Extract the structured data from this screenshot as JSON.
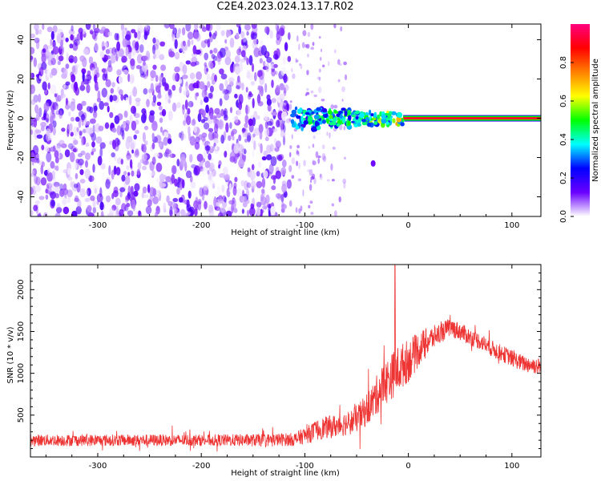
{
  "title": "C2E4.2023.024.13.17.R02",
  "chart_data": [
    {
      "type": "heatmap",
      "xlabel": "Height of straight line (km)",
      "ylabel": "Frequency (Hz)",
      "xlim": [
        -365,
        128
      ],
      "ylim": [
        -50,
        48
      ],
      "x_ticks": [
        -300,
        -200,
        -100,
        0,
        100
      ],
      "x_tick_labels": [
        "-300",
        "-200",
        "-100",
        "0",
        "100"
      ],
      "y_ticks": [
        -40,
        -20,
        0,
        20,
        40
      ],
      "y_tick_labels": [
        "-40",
        "-20",
        "0",
        "20",
        "40"
      ],
      "colorbar": {
        "label": "Normalized spectral amplitude",
        "range": [
          0,
          1
        ],
        "ticks": [
          0.0,
          0.2,
          0.4,
          0.6,
          0.8
        ],
        "tick_labels": [
          "0.0",
          "0.2",
          "0.4",
          "0.6",
          "0.8"
        ],
        "colormap": [
          "#ffffff",
          "#6a00ff",
          "#0000ff",
          "#00ffff",
          "#00ff00",
          "#ffff00",
          "#ff8000",
          "#ff0000",
          "#ff0080"
        ]
      },
      "regions": [
        {
          "description": "noise",
          "x_range": [
            -365,
            -115
          ],
          "freq_range": [
            -50,
            48
          ],
          "amplitude": 0.1
        },
        {
          "description": "sparse noise",
          "x_range": [
            -115,
            -60
          ],
          "freq_range": [
            -50,
            48
          ],
          "amplitude": 0.05
        },
        {
          "description": "signal onset",
          "x_range": [
            -112,
            -5
          ],
          "freq_range": [
            -6,
            6
          ],
          "amplitude": 0.3
        },
        {
          "description": "isolated blob",
          "x": -34,
          "freq": -23,
          "amplitude": 0.1
        },
        {
          "description": "steady line",
          "x_range": [
            -5,
            128
          ],
          "freq": 0,
          "amplitude": 0.95
        }
      ]
    },
    {
      "type": "line",
      "xlabel": "Height of straight line (km)",
      "ylabel": "SNR (10 * v/v)",
      "xlim": [
        -365,
        128
      ],
      "ylim": [
        0,
        2300
      ],
      "x_ticks": [
        -300,
        -200,
        -100,
        0,
        100
      ],
      "x_tick_labels": [
        "-300",
        "-200",
        "-100",
        "0",
        "100"
      ],
      "y_ticks": [
        500,
        1000,
        1500,
        2000
      ],
      "y_tick_labels": [
        "500",
        "1000",
        "1500",
        "2000"
      ],
      "color": "#ee3333",
      "series": [
        {
          "x": [
            -365,
            -300,
            -200,
            -150,
            -110,
            -95,
            -85,
            -70,
            -55,
            -45,
            -35,
            -25,
            -15,
            -10,
            0,
            15,
            30,
            40,
            50,
            60,
            70,
            80,
            90,
            100,
            110,
            128
          ],
          "y": [
            200,
            200,
            200,
            200,
            210,
            280,
            340,
            370,
            420,
            500,
            650,
            850,
            980,
            1050,
            1150,
            1350,
            1480,
            1550,
            1500,
            1430,
            1380,
            1300,
            1240,
            1180,
            1120,
            1080
          ],
          "noise": [
            70,
            70,
            70,
            75,
            80,
            110,
            130,
            140,
            150,
            180,
            220,
            260,
            280,
            280,
            260,
            180,
            120,
            110,
            110,
            100,
            100,
            100,
            100,
            100,
            100,
            100
          ]
        }
      ],
      "peak": {
        "x": -13,
        "y": 2290
      }
    }
  ]
}
